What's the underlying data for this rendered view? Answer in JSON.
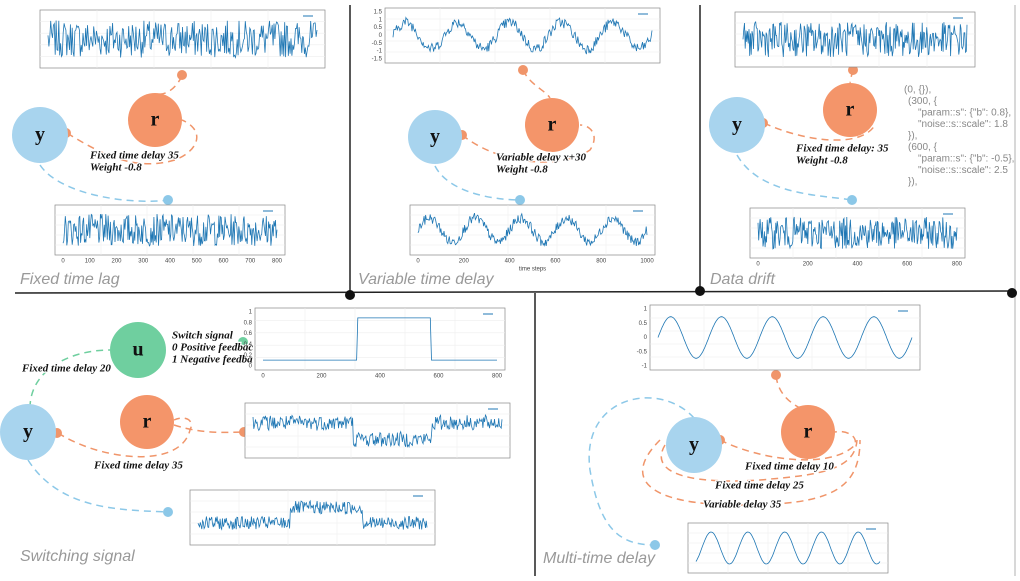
{
  "panels": [
    {
      "title": "Fixed time lag",
      "nodes": [
        "y",
        "r"
      ],
      "edge_labels": [
        "Fixed time delay 35",
        "Weight -0.8"
      ],
      "xticks": [
        0,
        100,
        200,
        300,
        400,
        500,
        600,
        700,
        800
      ]
    },
    {
      "title": "Variable time delay",
      "nodes": [
        "y",
        "r"
      ],
      "edge_labels": [
        "Variable delay x+30",
        "Weight -0.8"
      ],
      "yticks": [
        1.5,
        1.0,
        0.5,
        0.0,
        -0.5,
        -1.0,
        -1.5
      ],
      "xticks": [
        0,
        200,
        400,
        600,
        800,
        1000
      ],
      "xlabel": "time steps"
    },
    {
      "title": "Data drift",
      "nodes": [
        "y",
        "r"
      ],
      "edge_labels": [
        "Fixed time delay: 35",
        "Weight -0.8"
      ],
      "code": [
        "(0,   {}),",
        "(300, {",
        "\"param::s\": {\"b\": 0.8},",
        "\"noise::s::scale\": 1.8",
        "}),",
        "(600, {",
        "\"param::s\": {\"b\": -0.5},",
        "\"noise::s::scale\": 2.5",
        "}),"
      ],
      "xticks": [
        0,
        200,
        400,
        600,
        800
      ]
    },
    {
      "title": "Switching signal",
      "nodes": [
        "u",
        "y",
        "r"
      ],
      "switch_labels": [
        "Switch signal",
        "0 Positive feedbac",
        "1 Negative feedba"
      ],
      "edge_labels": [
        "Fixed time delay 20",
        "Fixed time delay 35"
      ],
      "xticks": [
        0,
        200,
        400,
        600,
        800
      ],
      "yticks": [
        1.0,
        0.8,
        0.6,
        0.4,
        0.2,
        0.0
      ]
    },
    {
      "title": "Multi-time delay",
      "nodes": [
        "y",
        "r"
      ],
      "edge_labels": [
        "Fixed time delay 10",
        "Fixed time delay 25",
        "Variable delay 35"
      ],
      "yticks": [
        1.0,
        0.5,
        0.0,
        -0.5,
        -1.0
      ]
    }
  ]
}
